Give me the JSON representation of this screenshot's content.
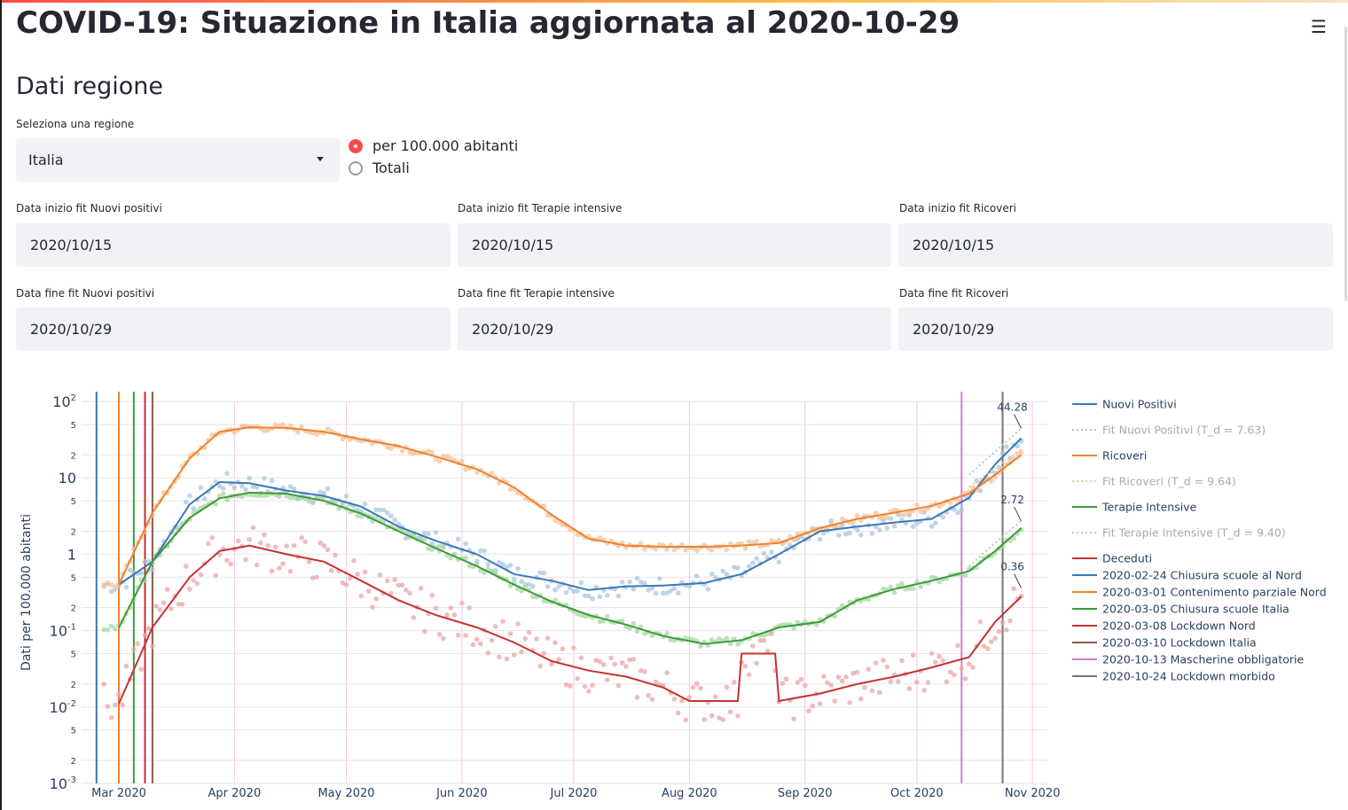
{
  "page": {
    "title": "COVID-19: Situazione in Italia aggiornata al 2020-10-29",
    "menu_icon": "hamburger-menu-icon",
    "subheader": "Dati regione"
  },
  "controls": {
    "region_label": "Seleziona una regione",
    "region_value": "Italia",
    "radio_options": [
      {
        "label": "per 100.000 abitanti",
        "selected": true
      },
      {
        "label": "Totali",
        "selected": false
      }
    ],
    "fit_start": [
      {
        "label": "Data inizio fit Nuovi positivi",
        "value": "2020/10/15"
      },
      {
        "label": "Data inizio fit Terapie intensive",
        "value": "2020/10/15"
      },
      {
        "label": "Data inizio fit Ricoveri",
        "value": "2020/10/15"
      }
    ],
    "fit_end": [
      {
        "label": "Data fine fit Nuovi positivi",
        "value": "2020/10/29"
      },
      {
        "label": "Data fine fit Terapie intensive",
        "value": "2020/10/29"
      },
      {
        "label": "Data fine fit Ricoveri",
        "value": "2020/10/29"
      }
    ]
  },
  "chart_data": {
    "type": "line",
    "ylabel": "Dati per 100.000 abitanti",
    "yscale": "log",
    "ylim": [
      0.001,
      100
    ],
    "xlim": [
      "2020-02-20",
      "2020-11-05"
    ],
    "x_ticks": [
      "Mar 2020",
      "Apr 2020",
      "May 2020",
      "Jun 2020",
      "Jul 2020",
      "Aug 2020",
      "Sep 2020",
      "Oct 2020",
      "Nov 2020"
    ],
    "y_ticks_major": [
      "10^-3",
      "10^-2",
      "10^-1",
      "1",
      "10",
      "10^2"
    ],
    "y_ticks_minor": [
      "2",
      "5"
    ],
    "grid": true,
    "legend_position": "right",
    "series": [
      {
        "name": "Nuovi Positivi",
        "color": "#3a78b6",
        "style": "solid",
        "x": [
          "2020-03-01",
          "2020-03-10",
          "2020-03-20",
          "2020-03-28",
          "2020-04-05",
          "2020-04-15",
          "2020-04-25",
          "2020-05-05",
          "2020-05-15",
          "2020-05-25",
          "2020-06-05",
          "2020-06-15",
          "2020-06-25",
          "2020-07-05",
          "2020-07-15",
          "2020-07-25",
          "2020-08-05",
          "2020-08-15",
          "2020-08-25",
          "2020-09-05",
          "2020-09-15",
          "2020-09-25",
          "2020-10-05",
          "2020-10-15",
          "2020-10-22",
          "2020-10-29"
        ],
        "y": [
          0.4,
          0.8,
          4.5,
          8.8,
          8.5,
          6.8,
          5.8,
          4.2,
          2.3,
          1.5,
          1.0,
          0.55,
          0.45,
          0.34,
          0.38,
          0.39,
          0.42,
          0.55,
          1.0,
          2.0,
          2.3,
          2.6,
          2.9,
          5.5,
          15,
          33
        ]
      },
      {
        "name": "Fit Nuovi Positivi (T_d = 7.63)",
        "color": "#a9c6e2",
        "style": "dotted",
        "x": [
          "2020-10-15",
          "2020-10-22",
          "2020-10-29"
        ],
        "y": [
          11,
          22,
          44.28
        ]
      },
      {
        "name": "Ricoveri",
        "color": "#f0812c",
        "style": "solid",
        "x": [
          "2020-03-01",
          "2020-03-10",
          "2020-03-20",
          "2020-03-28",
          "2020-04-05",
          "2020-04-15",
          "2020-04-25",
          "2020-05-05",
          "2020-05-15",
          "2020-05-25",
          "2020-06-05",
          "2020-06-15",
          "2020-06-25",
          "2020-07-05",
          "2020-07-15",
          "2020-07-25",
          "2020-08-05",
          "2020-08-15",
          "2020-08-25",
          "2020-09-05",
          "2020-09-15",
          "2020-09-25",
          "2020-10-05",
          "2020-10-15",
          "2020-10-22",
          "2020-10-29"
        ],
        "y": [
          0.4,
          3.5,
          18,
          40,
          46,
          45,
          40,
          32,
          26,
          19,
          13,
          7.5,
          3.3,
          1.6,
          1.3,
          1.25,
          1.25,
          1.3,
          1.4,
          2.2,
          2.9,
          3.5,
          4.3,
          6.2,
          11,
          20
        ]
      },
      {
        "name": "Fit Ricoveri (T_d = 9.64)",
        "color": "#f7c09a",
        "style": "dotted",
        "x": [
          "2020-10-15",
          "2020-10-22",
          "2020-10-29"
        ],
        "y": [
          7.6,
          13.5,
          24
        ]
      },
      {
        "name": "Terapie Intensive",
        "color": "#3d9a3d",
        "style": "solid",
        "x": [
          "2020-03-01",
          "2020-03-10",
          "2020-03-20",
          "2020-03-28",
          "2020-04-05",
          "2020-04-15",
          "2020-04-25",
          "2020-05-05",
          "2020-05-15",
          "2020-05-25",
          "2020-06-05",
          "2020-06-15",
          "2020-06-25",
          "2020-07-05",
          "2020-07-15",
          "2020-07-25",
          "2020-08-05",
          "2020-08-15",
          "2020-08-25",
          "2020-09-05",
          "2020-09-15",
          "2020-09-25",
          "2020-10-05",
          "2020-10-15",
          "2020-10-22",
          "2020-10-29"
        ],
        "y": [
          0.11,
          0.8,
          3.0,
          5.4,
          6.4,
          6.2,
          5.0,
          3.4,
          2.0,
          1.2,
          0.7,
          0.4,
          0.24,
          0.16,
          0.12,
          0.085,
          0.067,
          0.075,
          0.11,
          0.13,
          0.25,
          0.35,
          0.45,
          0.6,
          1.1,
          2.2
        ]
      },
      {
        "name": "Fit Terapie Intensive (T_d = 9.40)",
        "color": "#a8d8a0",
        "style": "dotted",
        "x": [
          "2020-10-15",
          "2020-10-22",
          "2020-10-29"
        ],
        "y": [
          0.7,
          1.4,
          2.72
        ]
      },
      {
        "name": "Deceduti",
        "color": "#c63232",
        "style": "solid",
        "x": [
          "2020-03-01",
          "2020-03-10",
          "2020-03-20",
          "2020-03-28",
          "2020-04-05",
          "2020-04-15",
          "2020-04-25",
          "2020-05-05",
          "2020-05-15",
          "2020-05-25",
          "2020-06-05",
          "2020-06-15",
          "2020-06-25",
          "2020-07-05",
          "2020-07-15",
          "2020-07-25",
          "2020-08-01",
          "2020-08-10",
          "2020-08-14",
          "2020-08-15",
          "2020-08-20",
          "2020-08-24",
          "2020-08-25",
          "2020-09-05",
          "2020-09-15",
          "2020-09-25",
          "2020-10-05",
          "2020-10-15",
          "2020-10-22",
          "2020-10-29"
        ],
        "y": [
          0.011,
          0.11,
          0.5,
          1.1,
          1.3,
          1.0,
          0.8,
          0.45,
          0.25,
          0.16,
          0.11,
          0.07,
          0.04,
          0.03,
          0.025,
          0.018,
          0.012,
          0.012,
          0.012,
          0.05,
          0.05,
          0.05,
          0.012,
          0.015,
          0.02,
          0.025,
          0.033,
          0.045,
          0.13,
          0.28
        ]
      }
    ],
    "scatter_series": [
      {
        "name": "Nuovi Positivi (dati)",
        "color": "#a9c6e2"
      },
      {
        "name": "Ricoveri (dati)",
        "color": "#f7c09a"
      },
      {
        "name": "Terapie Intensive (dati)",
        "color": "#a8d8a0"
      },
      {
        "name": "Deceduti (dati)",
        "color": "#eba5a5"
      }
    ],
    "events": [
      {
        "date": "2020-02-24",
        "label": "2020-02-24 Chiusura scuole al Nord",
        "color": "#3a78b6"
      },
      {
        "date": "2020-03-01",
        "label": "2020-03-01 Contenimento parziale Nord",
        "color": "#f0812c"
      },
      {
        "date": "2020-03-05",
        "label": "2020-03-05 Chiusura scuole Italia",
        "color": "#3d9a3d"
      },
      {
        "date": "2020-03-08",
        "label": "2020-03-08 Lockdown Nord",
        "color": "#c63232"
      },
      {
        "date": "2020-03-10",
        "label": "2020-03-10 Lockdown Italia",
        "color": "#8a5a4a"
      },
      {
        "date": "2020-10-13",
        "label": "2020-10-13 Mascherine obbligatorie",
        "color": "#d978d0"
      },
      {
        "date": "2020-10-24",
        "label": "2020-10-24 Lockdown morbido",
        "color": "#777777"
      }
    ],
    "annotations": [
      {
        "text": "44.28",
        "x": "2020-10-29",
        "y": 44.28
      },
      {
        "text": "2.72",
        "x": "2020-10-29",
        "y": 2.72
      },
      {
        "text": "0.36",
        "x": "2020-10-29",
        "y": 0.36
      }
    ]
  }
}
